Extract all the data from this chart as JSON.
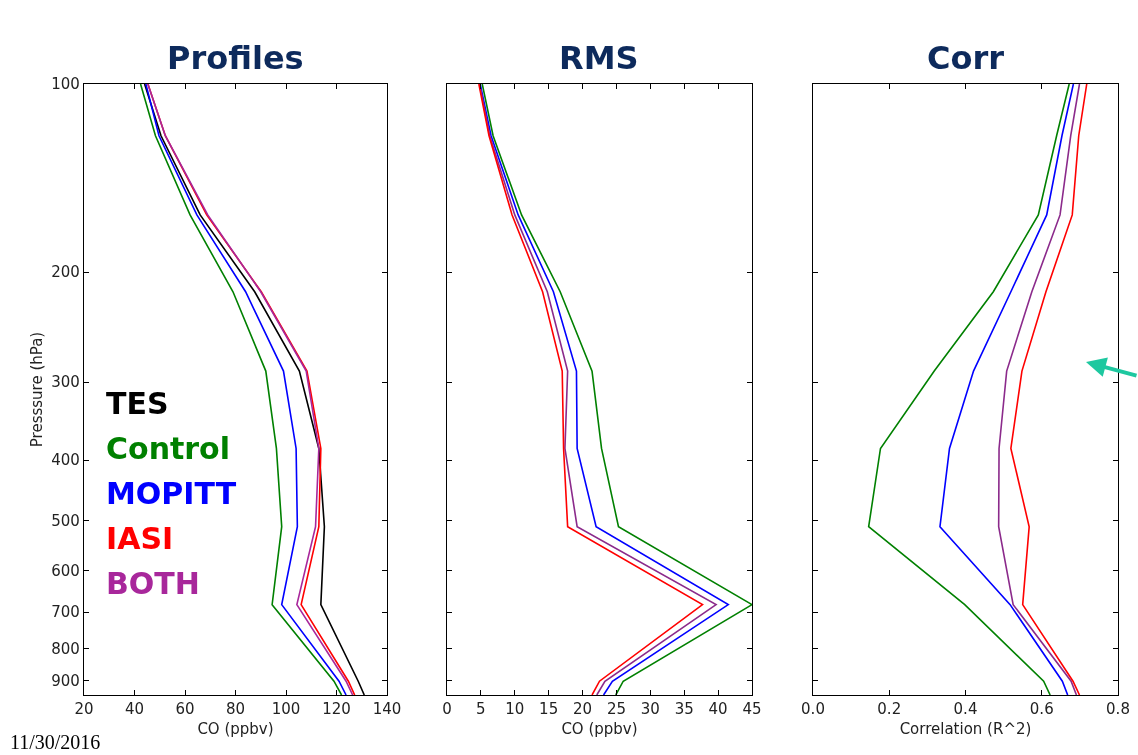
{
  "chart_data": [
    {
      "type": "line",
      "title": "Profiles",
      "xlabel": "CO (ppbv)",
      "ylabel": "Presssure (hPa)",
      "log": "y",
      "marker": "none",
      "line_style": "solid",
      "xlim": [
        20,
        140
      ],
      "xticks": [
        20,
        40,
        60,
        80,
        100,
        120,
        140
      ],
      "ylim": [
        950,
        100
      ],
      "yticks": [
        100,
        200,
        300,
        400,
        500,
        600,
        700,
        800,
        900
      ],
      "annotations": [
        "11/30/2016"
      ],
      "series": [
        {
          "name": "TES",
          "color": "#000000",
          "x": [
            44,
            50.5,
            66,
            87.6,
            105.3,
            113,
            115.2,
            113.8,
            128.6,
            131
          ],
          "values": [
            100,
            121,
            162,
            215,
            288,
            383,
            511,
            681,
            903,
            950
          ]
        },
        {
          "name": "Control",
          "color": "#008000",
          "x": [
            42.4,
            48.3,
            62,
            79,
            92,
            96.2,
            98.3,
            94.5,
            119,
            122
          ],
          "values": [
            100,
            121,
            162,
            215,
            288,
            383,
            511,
            681,
            903,
            950
          ]
        },
        {
          "name": "MOPITT",
          "color": "#0000ff",
          "x": [
            44.5,
            49.7,
            64.7,
            84,
            99,
            104,
            104.5,
            98.3,
            121,
            123.8
          ],
          "values": [
            100,
            121,
            162,
            215,
            288,
            383,
            511,
            681,
            903,
            950
          ]
        },
        {
          "name": "IASI",
          "color": "#ff0000",
          "x": [
            45.3,
            52.2,
            68.6,
            90.2,
            108.3,
            113.8,
            113,
            106,
            124.7,
            127.2
          ],
          "values": [
            100,
            121,
            162,
            215,
            288,
            383,
            511,
            681,
            903,
            950
          ]
        },
        {
          "name": "BOTH",
          "color": "#a8279b",
          "x": [
            45.3,
            52.2,
            69,
            90,
            108,
            113,
            111.7,
            104.3,
            123.8,
            126.4
          ],
          "values": [
            100,
            121,
            162,
            215,
            288,
            383,
            511,
            681,
            903,
            950
          ]
        }
      ]
    },
    {
      "type": "line",
      "title": "RMS",
      "xlabel": "CO (ppbv)",
      "log": "y",
      "marker": "none",
      "line_style": "solid",
      "tick_labels": "x",
      "xlim": [
        0,
        45
      ],
      "xticks": [
        0,
        5,
        10,
        15,
        20,
        25,
        30,
        35,
        40,
        45
      ],
      "ylim": [
        950,
        100
      ],
      "yticks": [
        100,
        200,
        300,
        400,
        500,
        600,
        700,
        800,
        900
      ],
      "series": [
        {
          "color": "#008000",
          "x": [
            5.2,
            6.8,
            11,
            16.7,
            21.4,
            22.8,
            25.3,
            45,
            26,
            24.9
          ],
          "values": [
            100,
            121,
            162,
            215,
            288,
            383,
            511,
            681,
            903,
            950
          ]
        },
        {
          "color": "#0000ff",
          "x": [
            4.9,
            6.5,
            10.5,
            15.7,
            19.1,
            19.2,
            22,
            41.5,
            24.4,
            23.1
          ],
          "values": [
            100,
            121,
            162,
            215,
            288,
            383,
            511,
            681,
            903,
            950
          ]
        },
        {
          "color": "#8b2a8b",
          "x": [
            4.8,
            6.3,
            10,
            14.8,
            17.8,
            17.4,
            19.2,
            39.7,
            23.3,
            22.1
          ],
          "values": [
            100,
            121,
            162,
            215,
            288,
            383,
            511,
            681,
            903,
            950
          ]
        },
        {
          "color": "#ff0000",
          "x": [
            4.7,
            6.2,
            9.6,
            14.1,
            17,
            17.2,
            17.8,
            37.7,
            22.5,
            21.4
          ],
          "values": [
            100,
            121,
            162,
            215,
            288,
            383,
            511,
            681,
            903,
            950
          ]
        }
      ]
    },
    {
      "type": "line",
      "title": "Corr",
      "xlabel": "Correlation (R^2)",
      "log": "y",
      "marker": "none",
      "line_style": "solid",
      "tick_labels": "x",
      "xlim": [
        0,
        0.8
      ],
      "xticks": [
        {
          "value": 0,
          "label": "0.0"
        },
        0.2,
        0.4,
        0.6,
        0.8
      ],
      "ylim": [
        950,
        100
      ],
      "yticks": [
        100,
        200,
        300,
        400,
        500,
        600,
        700,
        800,
        900
      ],
      "series": [
        {
          "color": "#008000",
          "x": [
            0.672,
            0.639,
            0.591,
            0.473,
            0.318,
            0.177,
            0.146,
            0.398,
            0.605,
            0.622
          ],
          "values": [
            100,
            121,
            162,
            215,
            288,
            383,
            511,
            681,
            903,
            950
          ]
        },
        {
          "color": "#0000ff",
          "x": [
            0.683,
            0.653,
            0.613,
            0.519,
            0.421,
            0.358,
            0.333,
            0.517,
            0.654,
            0.668
          ],
          "values": [
            100,
            121,
            162,
            215,
            288,
            383,
            511,
            681,
            903,
            950
          ]
        },
        {
          "color": "#8b2a8b",
          "x": [
            0.699,
            0.676,
            0.648,
            0.574,
            0.508,
            0.488,
            0.487,
            0.525,
            0.677,
            0.691
          ],
          "values": [
            100,
            121,
            162,
            215,
            288,
            383,
            511,
            681,
            903,
            950
          ]
        },
        {
          "color": "#ff0000",
          "x": [
            0.718,
            0.697,
            0.68,
            0.611,
            0.548,
            0.519,
            0.567,
            0.55,
            0.682,
            0.699
          ],
          "values": [
            100,
            121,
            162,
            215,
            288,
            383,
            511,
            681,
            903,
            950
          ]
        }
      ]
    }
  ]
}
